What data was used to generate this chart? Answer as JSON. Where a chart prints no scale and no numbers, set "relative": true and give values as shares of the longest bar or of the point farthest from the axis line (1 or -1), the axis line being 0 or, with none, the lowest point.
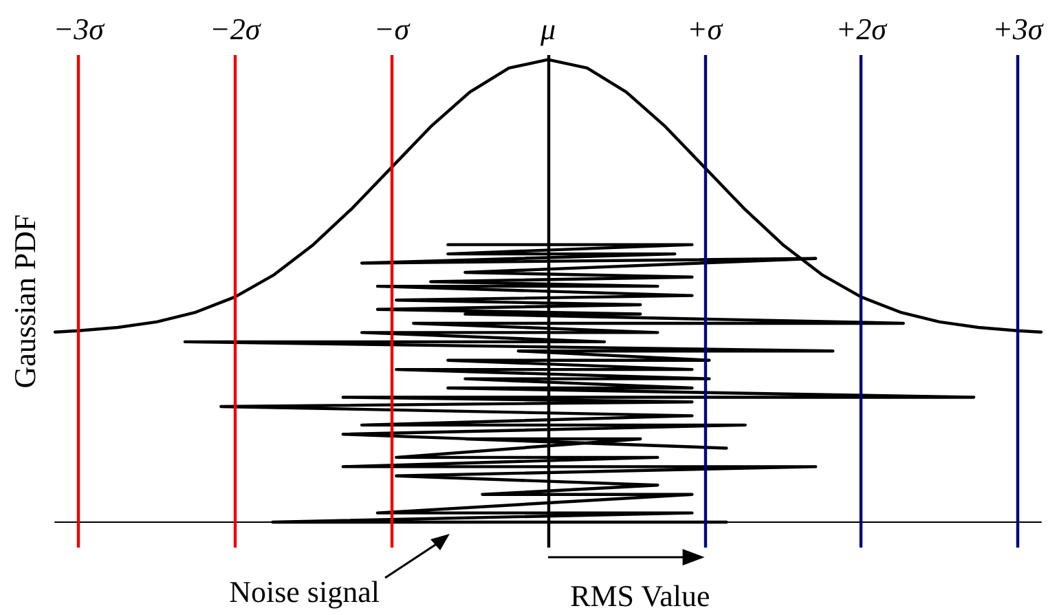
{
  "chart_data": {
    "type": "line",
    "ylabel": "Gaussian PDF",
    "relative": true,
    "xlim": [
      -3.15,
      3.15
    ],
    "xticks": [
      {
        "value": -3,
        "label": "−3σ"
      },
      {
        "value": -2,
        "label": "−2σ"
      },
      {
        "value": -1,
        "label": "−σ"
      },
      {
        "value": 0,
        "label": "μ"
      },
      {
        "value": 1,
        "label": "+σ"
      },
      {
        "value": 2,
        "label": "+2σ"
      },
      {
        "value": 3,
        "label": "+3σ"
      }
    ],
    "marker": "none",
    "line_style": "solid",
    "tick_labels": "x",
    "series": [
      {
        "color": "#000000",
        "x": [
          -3.15,
          -3,
          -2.75,
          -2.5,
          -2.25,
          -2,
          -1.75,
          -1.5,
          -1.25,
          -1,
          -0.75,
          -0.5,
          -0.25,
          0,
          0.25,
          0.5,
          0.75,
          1,
          1.25,
          1.5,
          1.75,
          2,
          2.25,
          2.5,
          2.75,
          3,
          3.15
        ],
        "values": [
          0.411,
          0.414,
          0.421,
          0.433,
          0.454,
          0.487,
          0.535,
          0.6,
          0.679,
          0.767,
          0.855,
          0.93,
          0.982,
          1.0,
          0.982,
          0.93,
          0.855,
          0.767,
          0.679,
          0.6,
          0.535,
          0.487,
          0.454,
          0.433,
          0.421,
          0.414,
          0.411
        ]
      },
      {
        "color": "#000000",
        "x": [
          -0.64,
          0.92,
          -0.64,
          0.81,
          -1.19,
          1.71,
          -0.53,
          0.92,
          -0.75,
          0.7,
          -1.09,
          0.92,
          -0.97,
          0.59,
          -1.09,
          0.59,
          -0.53,
          2.27,
          -0.86,
          0.7,
          -1.19,
          0.36,
          -2.32,
          1.82,
          -0.19,
          1.03,
          -0.64,
          0.92,
          -0.97,
          1.03,
          -0.53,
          0.92,
          -0.64,
          2.72,
          -1.31,
          0.92,
          -2.09,
          0.92,
          -1.19,
          1.26,
          -1.31,
          1.14,
          -0.53,
          0.59,
          -0.97,
          0.7,
          -1.31,
          1.71,
          -0.97,
          0.7,
          -0.42,
          0.92,
          -1.09,
          0.92,
          -1.76,
          1.14
        ],
        "values": [
          0.6,
          0.6,
          0.58,
          0.58,
          0.56,
          0.57,
          0.54,
          0.53,
          0.52,
          0.51,
          0.51,
          0.49,
          0.48,
          0.47,
          0.46,
          0.45,
          0.45,
          0.43,
          0.43,
          0.41,
          0.41,
          0.39,
          0.39,
          0.37,
          0.37,
          0.35,
          0.35,
          0.33,
          0.33,
          0.31,
          0.31,
          0.29,
          0.29,
          0.27,
          0.27,
          0.26,
          0.25,
          0.23,
          0.21,
          0.21,
          0.19,
          0.16,
          0.18,
          0.18,
          0.14,
          0.14,
          0.12,
          0.12,
          0.1,
          0.08,
          0.06,
          0.06,
          0.02,
          0.02,
          0,
          0
        ]
      }
    ],
    "ref_lines": [
      {
        "axis": "x",
        "value": -3,
        "color": "#ee0000"
      },
      {
        "axis": "x",
        "value": -2,
        "color": "#ee0000"
      },
      {
        "axis": "x",
        "value": -1,
        "color": "#ee0000"
      },
      {
        "axis": "x",
        "value": 0,
        "color": "#000000"
      },
      {
        "axis": "x",
        "value": 1,
        "color": "#000080"
      },
      {
        "axis": "x",
        "value": 2,
        "color": "#000080"
      },
      {
        "axis": "x",
        "value": 3,
        "color": "#000080"
      }
    ],
    "annotations": [
      "Noise signal",
      "RMS Value"
    ]
  }
}
